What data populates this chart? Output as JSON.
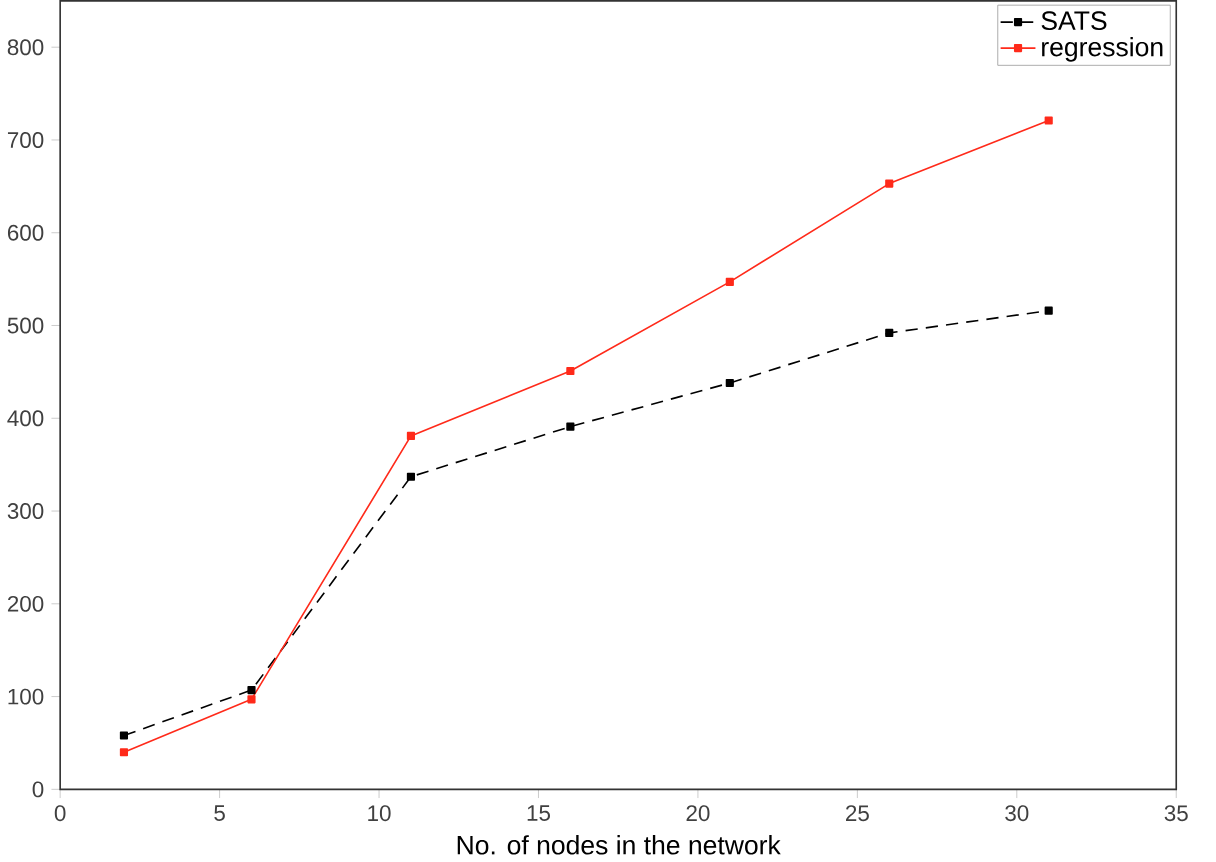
{
  "chart_data": {
    "type": "line",
    "xlabel": "No. of nodes in the network",
    "x": [
      2,
      6,
      11,
      16,
      21,
      26,
      31
    ],
    "series": [
      {
        "name": "SATS",
        "color": "#000000",
        "line_style": "dashed",
        "values": [
          58,
          107,
          337,
          391,
          438,
          492,
          516
        ]
      },
      {
        "name": "regression",
        "color": "#ff2a1a",
        "line_style": "solid",
        "values": [
          40,
          97,
          381,
          451,
          547,
          653,
          721
        ]
      }
    ],
    "xlim": [
      0,
      35
    ],
    "xticks": [
      0,
      5,
      10,
      15,
      20,
      25,
      30,
      35
    ],
    "ylim": [
      0,
      850
    ],
    "yticks": [
      0,
      100,
      200,
      300,
      400,
      500,
      600,
      700,
      800
    ],
    "marker": "square",
    "legend": "top right",
    "grid": false
  }
}
